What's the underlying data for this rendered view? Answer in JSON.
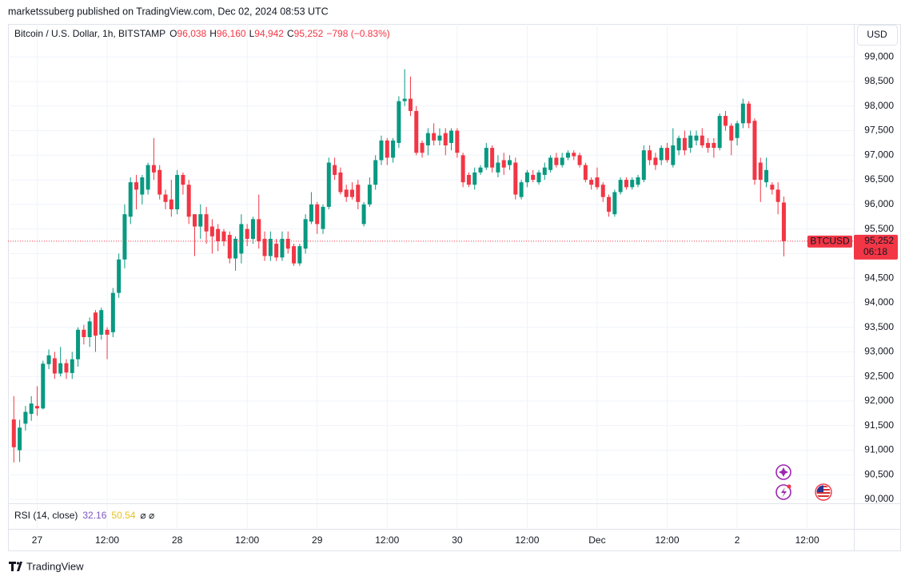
{
  "chart_data": {
    "type": "candlestick",
    "published": "marketssuberg published on TradingView.com, Dec 02, 2024 08:53 UTC",
    "title": "Bitcoin / U.S. Dollar, 1h, BITSTAMP",
    "ohlc_legend": [
      {
        "key": "O",
        "label": "96,038"
      },
      {
        "key": "H",
        "label": "96,160"
      },
      {
        "key": "L",
        "label": "94,942"
      },
      {
        "key": "C",
        "label": "95,252"
      }
    ],
    "change_label": "−798 (−0.83%)",
    "currency": "USD",
    "symbol_tag": "BTCUSD",
    "last_label": "95,252",
    "countdown": "06:18",
    "indicator": {
      "name": "RSI (14, close)",
      "values": [
        "32.16",
        "50.54"
      ],
      "colors": [
        "#7e57c2",
        "#e9c21a"
      ],
      "extra": "⌀ ⌀"
    },
    "brand": "TradingView",
    "up_color": "#089981",
    "down_color": "#f23645",
    "grid": true,
    "xlim": [
      -1,
      144
    ],
    "xticks": [
      {
        "value": 4,
        "label": "27"
      },
      {
        "value": 16,
        "label": "12:00"
      },
      {
        "value": 28,
        "label": "28"
      },
      {
        "value": 40,
        "label": "12:00"
      },
      {
        "value": 52,
        "label": "29"
      },
      {
        "value": 64,
        "label": "12:00"
      },
      {
        "value": 76,
        "label": "30"
      },
      {
        "value": 88,
        "label": "12:00"
      },
      {
        "value": 100,
        "label": "Dec"
      },
      {
        "value": 112,
        "label": "12:00"
      },
      {
        "value": 124,
        "label": "2"
      },
      {
        "value": 136,
        "label": "12:00"
      }
    ],
    "ylim": [
      89920,
      99670
    ],
    "yticks": [
      {
        "value": 90000,
        "label": "90,000"
      },
      {
        "value": 90500,
        "label": "90,500"
      },
      {
        "value": 91000,
        "label": "91,000"
      },
      {
        "value": 91500,
        "label": "91,500"
      },
      {
        "value": 92000,
        "label": "92,000"
      },
      {
        "value": 92500,
        "label": "92,500"
      },
      {
        "value": 93000,
        "label": "93,000"
      },
      {
        "value": 93500,
        "label": "93,500"
      },
      {
        "value": 94000,
        "label": "94,000"
      },
      {
        "value": 94500,
        "label": "94,500"
      },
      {
        "value": 95000,
        "label": "95,000"
      },
      {
        "value": 95500,
        "label": "95,500"
      },
      {
        "value": 96000,
        "label": "96,000"
      },
      {
        "value": 96500,
        "label": "96,500"
      },
      {
        "value": 97000,
        "label": "97,000"
      },
      {
        "value": 97500,
        "label": "97,500"
      },
      {
        "value": 98000,
        "label": "98,000"
      },
      {
        "value": 98500,
        "label": "98,500"
      },
      {
        "value": 99000,
        "label": "99,000"
      }
    ],
    "open": [
      91625,
      91000,
      91540,
      91740,
      91900,
      91850,
      92750,
      92870,
      92560,
      92770,
      92570,
      92850,
      93450,
      93300,
      93800,
      93350,
      93450,
      93400,
      94200,
      94880,
      95750,
      96450,
      96200,
      96300,
      96800,
      96700,
      96200,
      96100,
      95900,
      96600,
      96400,
      95800,
      95550,
      95800,
      95550,
      95500,
      95450,
      95380,
      94900,
      95000,
      95500,
      95300,
      95700,
      95300,
      94950,
      95200,
      94920,
      95300,
      95150,
      94800,
      95100,
      95650,
      96000,
      95500,
      95950,
      96800,
      96650,
      96300,
      96300,
      96400,
      95600,
      96000,
      96400,
      96900,
      97300,
      96950,
      97250,
      98100,
      98150,
      97900,
      97250,
      97200,
      97450,
      97300,
      97450,
      97250,
      97500,
      97000,
      96600,
      96400,
      96650,
      96750,
      97150,
      96650,
      96900,
      96800,
      96850,
      96150,
      96450,
      96600,
      96450,
      96600,
      96700,
      96950,
      96800,
      96950,
      97050,
      97000,
      96800,
      96500,
      96550,
      96400,
      96150,
      95800,
      96250,
      96500,
      96350,
      96400,
      96500,
      97100,
      96950,
      96900,
      97150,
      96800,
      97100,
      97350,
      97150,
      97300,
      97400,
      97250,
      97250,
      97150,
      97800,
      97600,
      97350,
      97650,
      98050,
      97700,
      96850,
      96450,
      96400,
      96300,
      96038
    ],
    "high": [
      92100,
      91620,
      91900,
      92100,
      92300,
      92820,
      93050,
      93000,
      93100,
      92850,
      93000,
      93500,
      93550,
      93700,
      93850,
      93900,
      93500,
      94300,
      95000,
      96000,
      96550,
      96600,
      96600,
      96850,
      97350,
      96800,
      96300,
      96500,
      96700,
      96650,
      96500,
      95800,
      96000,
      95950,
      95700,
      95600,
      95500,
      95450,
      95350,
      95800,
      95600,
      95750,
      96200,
      95450,
      95450,
      95300,
      95450,
      95450,
      95200,
      95200,
      95800,
      96250,
      96050,
      96000,
      96950,
      96950,
      96750,
      96400,
      96450,
      96500,
      96050,
      96550,
      97000,
      97400,
      97350,
      97350,
      98200,
      98750,
      98600,
      98000,
      97300,
      97550,
      97650,
      97550,
      97550,
      97550,
      97550,
      97050,
      96650,
      96750,
      96800,
      97250,
      97200,
      97000,
      97050,
      97000,
      96950,
      96500,
      96700,
      96700,
      96700,
      96850,
      97000,
      97050,
      97050,
      97100,
      97100,
      97050,
      96850,
      96550,
      96750,
      96450,
      96200,
      96300,
      96550,
      96550,
      96550,
      96600,
      97200,
      97200,
      97050,
      97200,
      97250,
      97550,
      97400,
      97500,
      97500,
      97500,
      97550,
      97350,
      97350,
      97850,
      97900,
      97650,
      97700,
      98150,
      98100,
      97750,
      96950,
      96950,
      96450,
      96450,
      96160
    ],
    "low": [
      90750,
      90760,
      91400,
      91600,
      91700,
      91830,
      92650,
      92450,
      92500,
      92450,
      92450,
      92700,
      93150,
      93100,
      93000,
      93250,
      92850,
      93300,
      94100,
      94700,
      95600,
      95900,
      96000,
      96200,
      96500,
      96100,
      95900,
      95750,
      95800,
      96200,
      95600,
      94950,
      95300,
      95200,
      95000,
      95050,
      95150,
      94800,
      94650,
      94800,
      95150,
      95200,
      95100,
      94850,
      94850,
      94850,
      94850,
      95000,
      94750,
      94750,
      95000,
      95600,
      95400,
      95400,
      95900,
      96500,
      96200,
      96050,
      96100,
      95900,
      95550,
      95950,
      96300,
      96800,
      96800,
      96850,
      97150,
      98000,
      97800,
      97000,
      96950,
      97000,
      97200,
      97200,
      97000,
      97100,
      96950,
      96350,
      96350,
      96300,
      96600,
      96700,
      96650,
      96550,
      96600,
      96700,
      96100,
      96100,
      96350,
      96450,
      96400,
      96500,
      96650,
      96750,
      96750,
      96900,
      96900,
      96750,
      96450,
      96300,
      96300,
      96050,
      95750,
      95750,
      96200,
      96300,
      96300,
      96350,
      96450,
      96800,
      96700,
      96800,
      96850,
      96750,
      97000,
      97000,
      97050,
      97200,
      97150,
      97050,
      96950,
      97100,
      97500,
      97000,
      97200,
      97550,
      97550,
      96400,
      96050,
      96350,
      96200,
      95800,
      94942
    ],
    "close": [
      91060,
      91460,
      91780,
      91950,
      91850,
      92760,
      92930,
      92560,
      92770,
      92580,
      92850,
      93450,
      93300,
      93620,
      93330,
      93850,
      93350,
      94200,
      94880,
      95800,
      96450,
      96300,
      96550,
      96800,
      96650,
      96200,
      96050,
      95900,
      96600,
      96400,
      95750,
      95550,
      95800,
      95450,
      95350,
      95250,
      95250,
      94900,
      95300,
      95600,
      95300,
      95700,
      95250,
      94950,
      95300,
      94920,
      95300,
      95100,
      94800,
      95150,
      95700,
      96000,
      95600,
      95950,
      96850,
      96600,
      96250,
      96150,
      96150,
      96050,
      96000,
      96400,
      96900,
      97300,
      96950,
      97300,
      98100,
      98150,
      97900,
      97050,
      97050,
      97450,
      97300,
      97400,
      97200,
      97500,
      97050,
      96450,
      96400,
      96650,
      96750,
      97150,
      96750,
      96850,
      96750,
      96900,
      96200,
      96450,
      96650,
      96500,
      96650,
      96750,
      96950,
      96800,
      96950,
      97050,
      96980,
      96800,
      96500,
      96400,
      96350,
      96150,
      95850,
      96250,
      96500,
      96350,
      96500,
      96550,
      97100,
      96900,
      96800,
      97150,
      96900,
      97200,
      97350,
      97100,
      97400,
      97400,
      97200,
      97150,
      97150,
      97800,
      97600,
      97300,
      97650,
      98050,
      97650,
      96500,
      96500,
      96700,
      96300,
      96050,
      95252
    ]
  }
}
